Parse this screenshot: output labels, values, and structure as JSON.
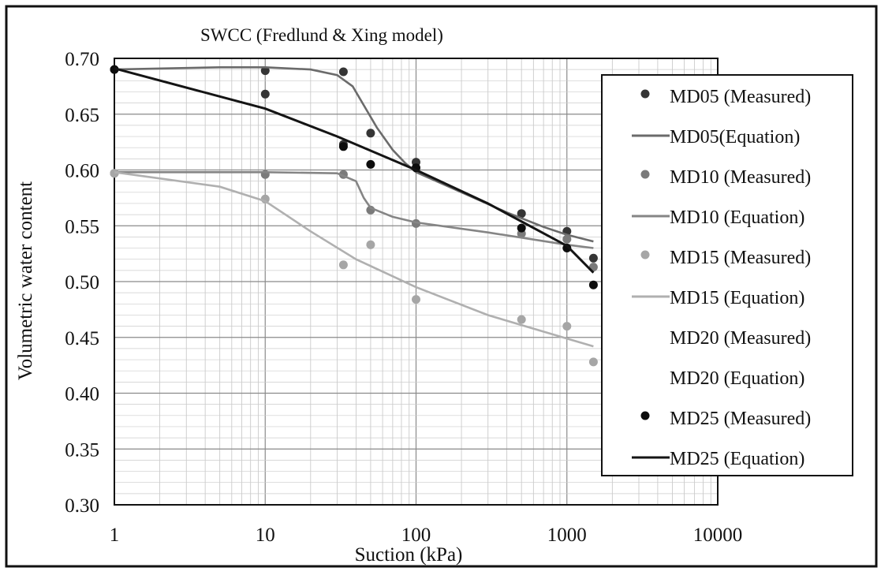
{
  "chart_data": {
    "type": "scatter",
    "title": "SWCC (Fredlund & Xing model)",
    "xlabel": "Suction (kPa)",
    "ylabel": "Volumetric water content",
    "x_scale": "log",
    "xlim": [
      1,
      10000
    ],
    "ylim": [
      0.3,
      0.7
    ],
    "x_ticks": [
      "1",
      "10",
      "100",
      "1000",
      "10000"
    ],
    "y_ticks": [
      "0.30",
      "0.35",
      "0.40",
      "0.45",
      "0.50",
      "0.55",
      "0.60",
      "0.65",
      "0.70"
    ],
    "grid": true,
    "legend_position": "right",
    "series": [
      {
        "name": "MD05 (Measured)",
        "kind": "points",
        "color": "#353535",
        "points": [
          [
            1,
            0.69
          ],
          [
            10,
            0.689
          ],
          [
            10,
            0.668
          ],
          [
            33,
            0.688
          ],
          [
            33,
            0.623
          ],
          [
            50,
            0.633
          ],
          [
            100,
            0.607
          ],
          [
            500,
            0.561
          ],
          [
            1000,
            0.545
          ],
          [
            1500,
            0.521
          ]
        ]
      },
      {
        "name": "MD05(Equation)",
        "kind": "line",
        "color": "#6b6b6b",
        "points": [
          [
            1,
            0.69
          ],
          [
            5,
            0.692
          ],
          [
            10,
            0.692
          ],
          [
            20,
            0.69
          ],
          [
            30,
            0.685
          ],
          [
            38,
            0.675
          ],
          [
            45,
            0.658
          ],
          [
            55,
            0.638
          ],
          [
            70,
            0.618
          ],
          [
            85,
            0.606
          ],
          [
            100,
            0.598
          ],
          [
            200,
            0.58
          ],
          [
            400,
            0.562
          ],
          [
            700,
            0.549
          ],
          [
            1000,
            0.542
          ],
          [
            1500,
            0.536
          ]
        ]
      },
      {
        "name": "MD10 (Measured)",
        "kind": "points",
        "color": "#7a7a7a",
        "points": [
          [
            1,
            0.597
          ],
          [
            10,
            0.596
          ],
          [
            33,
            0.596
          ],
          [
            50,
            0.564
          ],
          [
            100,
            0.552
          ],
          [
            500,
            0.543
          ],
          [
            1000,
            0.538
          ],
          [
            1500,
            0.513
          ]
        ]
      },
      {
        "name": "MD10 (Equation)",
        "kind": "line",
        "color": "#858585",
        "points": [
          [
            1,
            0.598
          ],
          [
            10,
            0.598
          ],
          [
            30,
            0.597
          ],
          [
            40,
            0.59
          ],
          [
            45,
            0.575
          ],
          [
            50,
            0.566
          ],
          [
            70,
            0.558
          ],
          [
            100,
            0.553
          ],
          [
            300,
            0.544
          ],
          [
            1000,
            0.533
          ],
          [
            1500,
            0.53
          ]
        ]
      },
      {
        "name": "MD15 (Measured)",
        "kind": "points",
        "color": "#a6a6a6",
        "points": [
          [
            1,
            0.597
          ],
          [
            10,
            0.574
          ],
          [
            33,
            0.515
          ],
          [
            50,
            0.533
          ],
          [
            100,
            0.484
          ],
          [
            500,
            0.466
          ],
          [
            1000,
            0.46
          ],
          [
            1500,
            0.428
          ]
        ]
      },
      {
        "name": "MD15 (Equation)",
        "kind": "line",
        "color": "#b0b0b0",
        "points": [
          [
            1,
            0.598
          ],
          [
            5,
            0.585
          ],
          [
            10,
            0.572
          ],
          [
            20,
            0.545
          ],
          [
            40,
            0.52
          ],
          [
            100,
            0.495
          ],
          [
            300,
            0.47
          ],
          [
            1000,
            0.449
          ],
          [
            1500,
            0.442
          ]
        ]
      },
      {
        "name": "MD20 (Measured)",
        "kind": "points",
        "color": "#ffffff",
        "points": []
      },
      {
        "name": "MD20 (Equation)",
        "kind": "line",
        "color": "#ffffff",
        "points": []
      },
      {
        "name": "MD25 (Measured)",
        "kind": "points",
        "color": "#0d0d0d",
        "points": [
          [
            1,
            0.69
          ],
          [
            33,
            0.621
          ],
          [
            50,
            0.605
          ],
          [
            100,
            0.602
          ],
          [
            500,
            0.548
          ],
          [
            1000,
            0.53
          ],
          [
            1500,
            0.497
          ]
        ]
      },
      {
        "name": "MD25 (Equation)",
        "kind": "line",
        "color": "#141414",
        "points": [
          [
            1,
            0.691
          ],
          [
            10,
            0.655
          ],
          [
            30,
            0.63
          ],
          [
            100,
            0.6
          ],
          [
            300,
            0.57
          ],
          [
            1000,
            0.532
          ],
          [
            1500,
            0.508
          ]
        ]
      }
    ]
  }
}
